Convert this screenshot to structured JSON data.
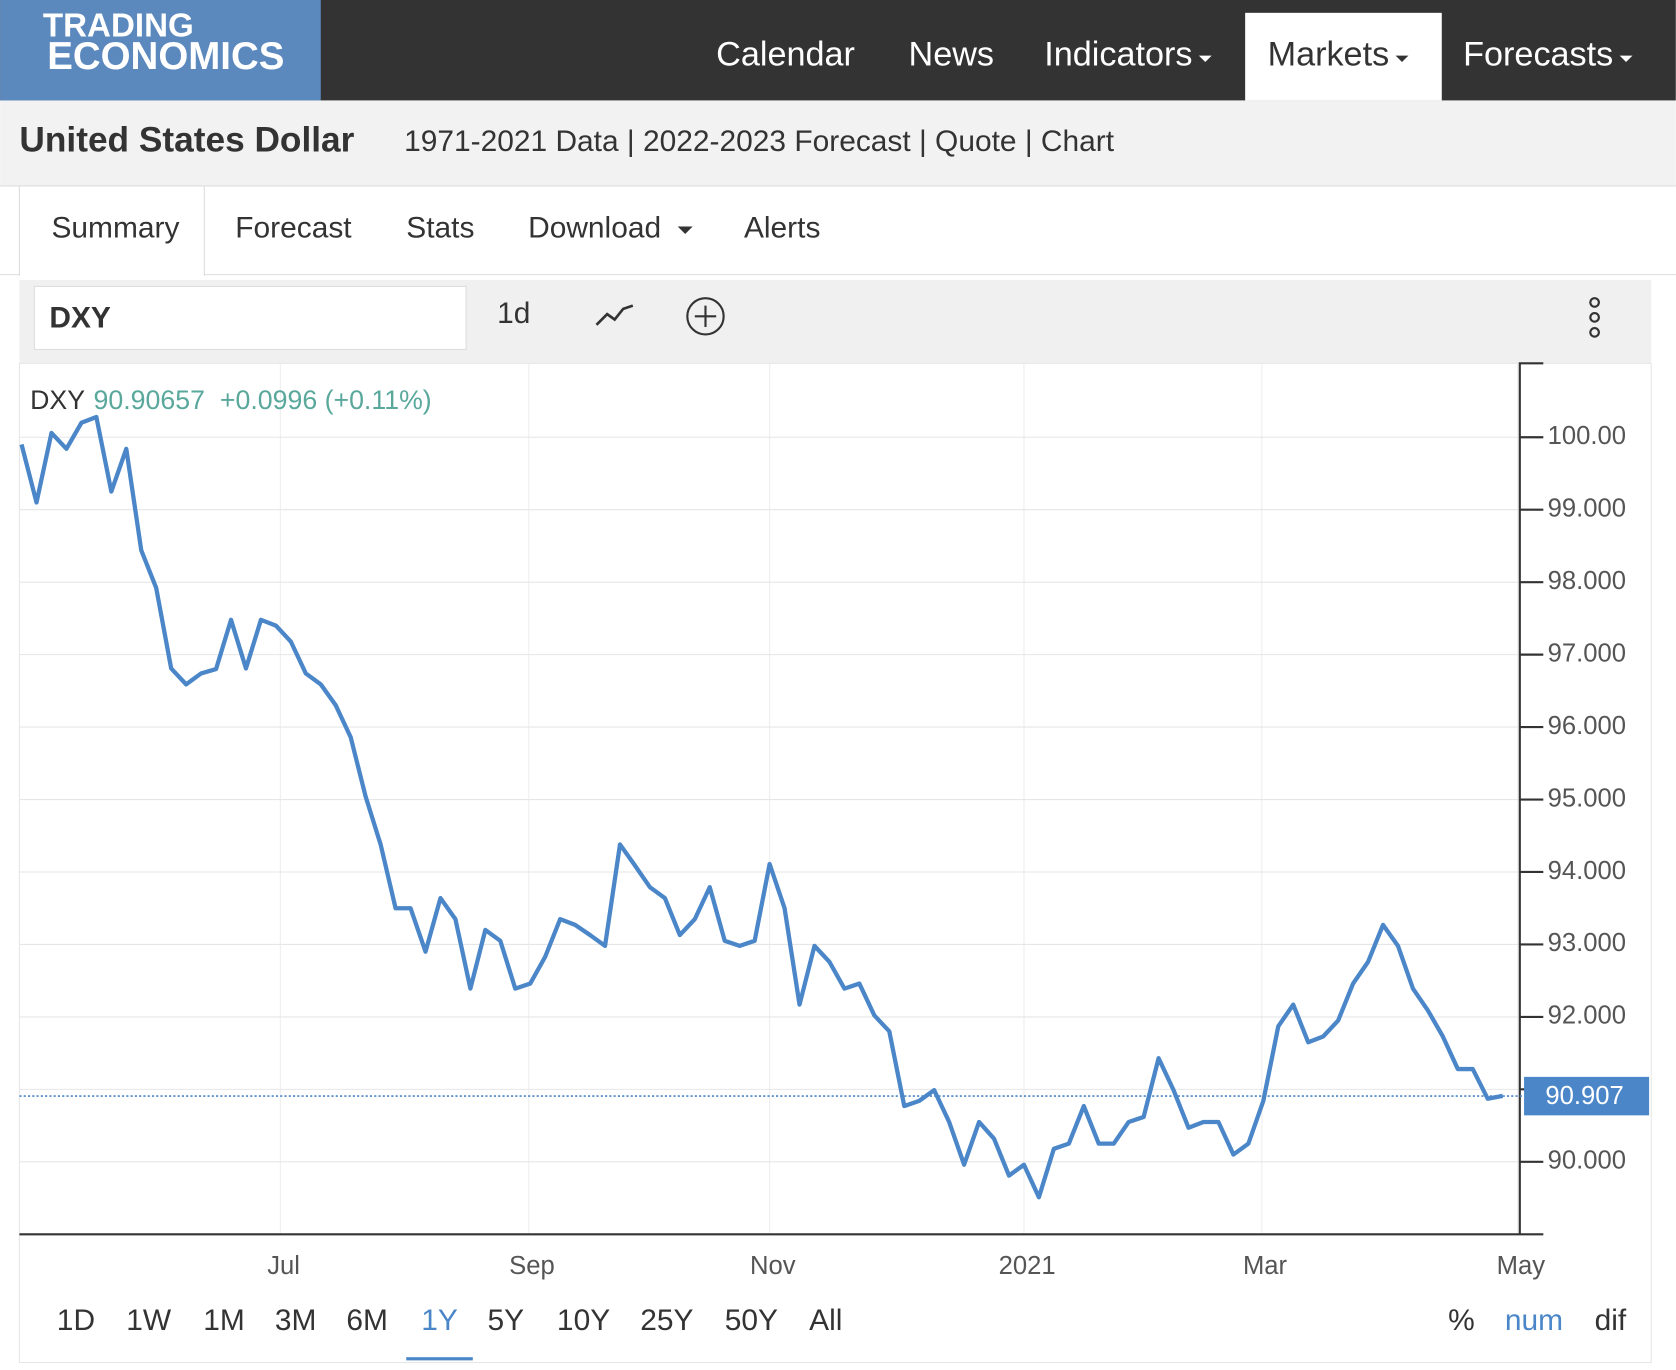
{
  "nav": {
    "logo": [
      "TRADING",
      "ECONOMICS"
    ],
    "items": [
      "Calendar",
      "News",
      "Indicators",
      "Markets",
      "Forecasts"
    ],
    "active": "Markets"
  },
  "header": {
    "title": "United States Dollar",
    "subtitle": "1971-2021 Data | 2022-2023 Forecast | Quote | Chart"
  },
  "tabs": [
    "Summary",
    "Forecast",
    "Stats",
    "Download",
    "Alerts"
  ],
  "toolbar": {
    "symbol": "DXY",
    "interval": "1d"
  },
  "chart_data": {
    "type": "line",
    "legend": {
      "name": "DXY",
      "price": "90.90657",
      "change": "+0.0996 (+0.11%)"
    },
    "series": [
      {
        "name": "DXY",
        "color": "#4a86c8",
        "values": [
          99.9,
          99.1,
          100.06,
          99.84,
          100.2,
          100.28,
          99.25,
          99.84,
          98.44,
          97.92,
          96.81,
          96.59,
          96.74,
          96.8,
          97.48,
          96.81,
          97.48,
          97.4,
          97.18,
          96.74,
          96.59,
          96.3,
          95.86,
          95.04,
          94.38,
          93.5,
          93.5,
          92.9,
          93.64,
          93.35,
          92.39,
          93.2,
          93.05,
          92.39,
          92.46,
          92.83,
          93.35,
          93.27,
          93.13,
          92.98,
          94.38,
          94.09,
          93.79,
          93.64,
          93.13,
          93.35,
          93.79,
          93.05,
          92.98,
          93.05,
          94.11,
          93.5,
          92.17,
          92.98,
          92.76,
          92.39,
          92.46,
          92.02,
          91.8,
          90.77,
          90.84,
          90.99,
          90.55,
          89.96,
          90.55,
          90.32,
          89.81,
          89.96,
          89.51,
          90.18,
          90.25,
          90.77,
          90.25,
          90.25,
          90.55,
          90.62,
          91.43,
          90.99,
          90.47,
          90.55,
          90.55,
          90.1,
          90.25,
          90.84,
          91.87,
          92.17,
          91.65,
          91.73,
          91.95,
          92.46,
          92.76,
          93.27,
          92.98,
          92.39,
          92.09,
          91.73,
          91.28,
          91.28,
          90.87,
          90.91
        ]
      }
    ],
    "xlim": [
      0,
      100
    ],
    "xticks": [
      {
        "value": 17.3,
        "label": "Jul"
      },
      {
        "value": 33.9,
        "label": "Sep"
      },
      {
        "value": 50,
        "label": "Nov"
      },
      {
        "value": 67,
        "label": "2021"
      },
      {
        "value": 82.9,
        "label": "Mar"
      },
      {
        "value": 100,
        "label": "May"
      }
    ],
    "ylim": [
      89.0,
      101.02
    ],
    "yticks": [
      {
        "value": 90,
        "label": "90.000"
      },
      {
        "value": 91,
        "label": "91.000"
      },
      {
        "value": 92,
        "label": "92.000"
      },
      {
        "value": 93,
        "label": "93.000"
      },
      {
        "value": 94,
        "label": "94.000"
      },
      {
        "value": 95,
        "label": "95.000"
      },
      {
        "value": 96,
        "label": "96.000"
      },
      {
        "value": 97,
        "label": "97.000"
      },
      {
        "value": 98,
        "label": "98.000"
      },
      {
        "value": 99,
        "label": "99.000"
      },
      {
        "value": 100,
        "label": "100.00"
      }
    ],
    "last_value": {
      "value": 90.907,
      "label": "90.907"
    },
    "grid": true
  },
  "ranges": [
    "1D",
    "1W",
    "1M",
    "3M",
    "6M",
    "1Y",
    "5Y",
    "10Y",
    "25Y",
    "50Y",
    "All"
  ],
  "active_range": "1Y",
  "modes": [
    "%",
    "num",
    "dif"
  ],
  "active_mode": "num"
}
